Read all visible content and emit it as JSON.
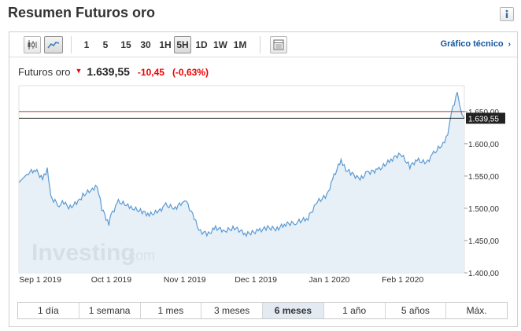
{
  "page": {
    "title": "Resumen Futuros oro"
  },
  "toolbar": {
    "intervals": [
      "1",
      "5",
      "15",
      "30",
      "1H",
      "5H",
      "1D",
      "1W",
      "1M"
    ],
    "active_interval": "5H",
    "tech_link": "Gráfico técnico"
  },
  "quote": {
    "name": "Futuros oro",
    "price": "1.639,55",
    "change": "-10,45",
    "change_pct": "(-0,63%)",
    "direction": "down"
  },
  "watermark": {
    "brand": "Investing",
    "suffix": ".com"
  },
  "ranges": [
    "1 día",
    "1 semana",
    "1 mes",
    "3 meses",
    "6 meses",
    "1 año",
    "5 años",
    "Máx."
  ],
  "active_range": "6 meses",
  "colors": {
    "line": "#5a9ad3",
    "area": "#e3edf6",
    "down": "#e00000",
    "link": "#1256a0",
    "ref_line": "#c03030"
  },
  "chart_data": {
    "type": "area",
    "title": "",
    "xlabel": "",
    "ylabel": "",
    "ylim": [
      1400,
      1690
    ],
    "x_ticks": [
      "Sep 1 2019",
      "Oct 1 2019",
      "Nov 1 2019",
      "Dec 1 2019",
      "Jan 1 2020",
      "Feb 1 2020"
    ],
    "y_ticks": [
      "1.400,00",
      "1.450,00",
      "1.500,00",
      "1.550,00",
      "1.600,00",
      "1.650,00"
    ],
    "current_value": 1639.55,
    "current_label": "1.639,55",
    "reference_value": 1650,
    "series": [
      {
        "x": [
          "2019-08-23",
          "2019-08-27",
          "2019-08-30",
          "2019-09-02",
          "2019-09-04",
          "2019-09-05",
          "2019-09-06",
          "2019-09-09",
          "2019-09-11",
          "2019-09-13",
          "2019-09-17",
          "2019-09-19",
          "2019-09-23",
          "2019-09-25",
          "2019-09-27",
          "2019-09-30",
          "2019-10-01",
          "2019-10-04",
          "2019-10-08",
          "2019-10-10",
          "2019-10-14",
          "2019-10-17",
          "2019-10-21",
          "2019-10-24",
          "2019-10-28",
          "2019-10-31",
          "2019-11-01",
          "2019-11-05",
          "2019-11-07",
          "2019-11-11",
          "2019-11-14",
          "2019-11-18",
          "2019-11-22",
          "2019-11-27",
          "2019-12-02",
          "2019-12-06",
          "2019-12-10",
          "2019-12-13",
          "2019-12-18",
          "2019-12-23",
          "2019-12-27",
          "2019-12-31",
          "2020-01-03",
          "2020-01-06",
          "2020-01-08",
          "2020-01-10",
          "2020-01-14",
          "2020-01-17",
          "2020-01-22",
          "2020-01-27",
          "2020-01-31",
          "2020-02-04",
          "2020-02-07",
          "2020-02-11",
          "2020-02-14",
          "2020-02-18",
          "2020-02-20",
          "2020-02-21",
          "2020-02-24",
          "2020-02-25",
          "2020-02-26",
          "2020-02-27"
        ],
        "values": [
          1540,
          1555,
          1560,
          1545,
          1560,
          1530,
          1515,
          1505,
          1510,
          1500,
          1510,
          1520,
          1530,
          1535,
          1500,
          1475,
          1490,
          1510,
          1505,
          1500,
          1495,
          1490,
          1495,
          1505,
          1500,
          1510,
          1515,
          1485,
          1465,
          1460,
          1470,
          1465,
          1470,
          1460,
          1465,
          1470,
          1468,
          1475,
          1478,
          1485,
          1510,
          1520,
          1550,
          1575,
          1560,
          1555,
          1545,
          1555,
          1560,
          1575,
          1585,
          1565,
          1575,
          1570,
          1585,
          1600,
          1615,
          1640,
          1680,
          1660,
          1645,
          1640
        ]
      }
    ]
  }
}
